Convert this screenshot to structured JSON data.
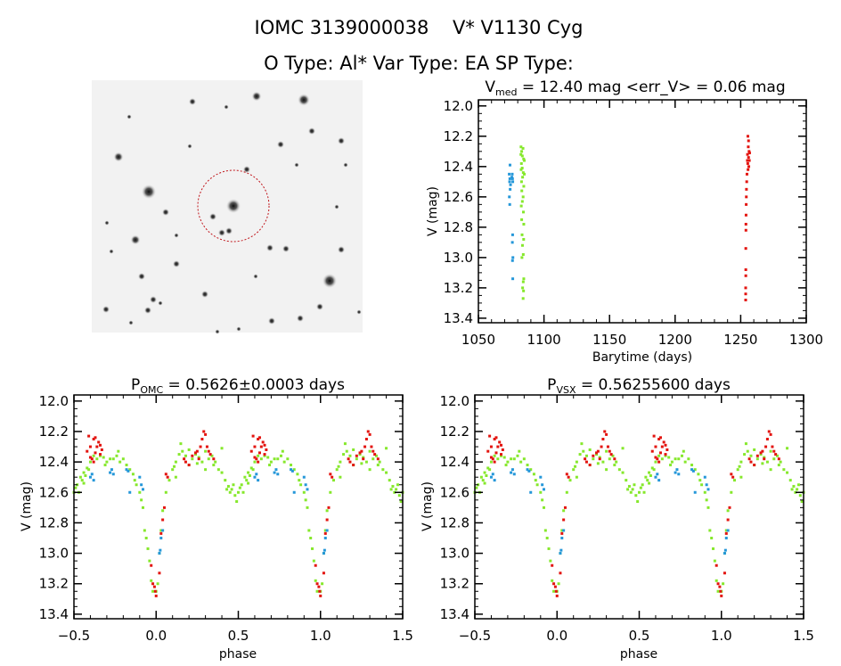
{
  "header": {
    "title": "IOMC 3139000038    V* V1130 Cyg",
    "subtitle": "O Type: Al*  Var Type: EA  SP Type:"
  },
  "colors": {
    "green": "#86e82c",
    "blue": "#2597d9",
    "red": "#e3140f",
    "axis": "#000000"
  },
  "chart_data": [
    {
      "id": "lightcurve",
      "type": "scatter",
      "title": {
        "main": "V",
        "sub": "med",
        "rest": " = 12.40 mag <err_V> = 0.06 mag"
      },
      "xlabel": "Barytime (days)",
      "ylabel": "V (mag)",
      "xlim": [
        1050,
        1300
      ],
      "ylim": [
        11.96,
        13.43
      ],
      "y_inverted": true,
      "xticks": [
        "1050",
        "1100",
        "1150",
        "1200",
        "1250",
        "1300"
      ],
      "xtick_values": [
        1050,
        1100,
        1150,
        1200,
        1250,
        1300
      ],
      "yticks": [
        "12.0",
        "12.2",
        "12.4",
        "12.6",
        "12.8",
        "13.0",
        "13.2",
        "13.4"
      ],
      "ytick_values": [
        12.0,
        12.2,
        12.4,
        12.6,
        12.8,
        13.0,
        13.2,
        13.4
      ],
      "series": [
        {
          "name": "blue",
          "color": "#2597d9",
          "points": [
            [
              1073.5,
              12.45
            ],
            [
              1073.8,
              12.5
            ],
            [
              1074,
              12.48
            ],
            [
              1074.2,
              12.55
            ],
            [
              1073.6,
              12.6
            ],
            [
              1073.9,
              12.65
            ],
            [
              1074.1,
              12.39
            ],
            [
              1075.8,
              12.45
            ],
            [
              1076,
              12.48
            ],
            [
              1076.2,
              12.5
            ],
            [
              1076.1,
              12.85
            ],
            [
              1075.9,
              12.9
            ],
            [
              1076.3,
              13.0
            ],
            [
              1076,
              13.02
            ],
            [
              1076.2,
              13.14
            ],
            [
              1074.5,
              12.52
            ],
            [
              1075.5,
              12.47
            ]
          ]
        },
        {
          "name": "green",
          "color": "#86e82c",
          "points": [
            [
              1082.5,
              12.27
            ],
            [
              1083,
              12.3
            ],
            [
              1083.5,
              12.33
            ],
            [
              1084,
              12.28
            ],
            [
              1084.5,
              12.35
            ],
            [
              1082.8,
              12.38
            ],
            [
              1083.4,
              12.41
            ],
            [
              1084.2,
              12.44
            ],
            [
              1083.7,
              12.47
            ],
            [
              1082.9,
              12.5
            ],
            [
              1084.6,
              12.53
            ],
            [
              1083.1,
              12.56
            ],
            [
              1084.1,
              12.6
            ],
            [
              1083.5,
              12.63
            ],
            [
              1082.7,
              12.66
            ],
            [
              1084.3,
              12.7
            ],
            [
              1083,
              12.75
            ],
            [
              1084.6,
              12.78
            ],
            [
              1083.3,
              12.85
            ],
            [
              1084.5,
              12.88
            ],
            [
              1083.6,
              12.92
            ],
            [
              1084.2,
              12.98
            ],
            [
              1083.2,
              13.0
            ],
            [
              1084.6,
              13.14
            ],
            [
              1084.2,
              13.16
            ],
            [
              1083.7,
              13.2
            ],
            [
              1084.4,
              13.22
            ],
            [
              1084.1,
              13.27
            ],
            [
              1082.6,
              12.42
            ],
            [
              1085,
              12.36
            ],
            [
              1085,
              12.45
            ],
            [
              1082.4,
              12.32
            ]
          ]
        },
        {
          "name": "red",
          "color": "#e3140f",
          "points": [
            [
              1255.5,
              12.2
            ],
            [
              1256,
              12.23
            ],
            [
              1255.8,
              12.27
            ],
            [
              1256.4,
              12.3
            ],
            [
              1255.2,
              12.32
            ],
            [
              1256,
              12.34
            ],
            [
              1256.6,
              12.36
            ],
            [
              1255.4,
              12.38
            ],
            [
              1256.2,
              12.4
            ],
            [
              1255.6,
              12.42
            ],
            [
              1254.8,
              12.45
            ],
            [
              1254.6,
              12.5
            ],
            [
              1254.4,
              12.55
            ],
            [
              1254.3,
              12.6
            ],
            [
              1254.2,
              12.65
            ],
            [
              1254.1,
              12.72
            ],
            [
              1254,
              12.78
            ],
            [
              1254,
              12.82
            ],
            [
              1253.9,
              12.94
            ],
            [
              1253.9,
              13.08
            ],
            [
              1253.9,
              13.12
            ],
            [
              1253.8,
              13.2
            ],
            [
              1253.8,
              13.24
            ],
            [
              1253.8,
              13.28
            ],
            [
              1256.8,
              12.31
            ],
            [
              1255.1,
              12.36
            ]
          ]
        }
      ]
    },
    {
      "id": "phase-omc",
      "type": "scatter",
      "title": {
        "main": "P",
        "sub": "OMC",
        "rest": " = 0.5626±0.0003 days"
      },
      "xlabel": "phase",
      "ylabel": "V (mag)",
      "xlim": [
        -0.5,
        1.5
      ],
      "ylim": [
        11.96,
        13.43
      ],
      "y_inverted": true,
      "period_days": 0.5626,
      "xticks": [
        "-0.5",
        "0.0",
        "0.5",
        "1.0",
        "1.5"
      ],
      "xtick_values": [
        -0.5,
        0.0,
        0.5,
        1.0,
        1.5
      ],
      "yticks": [
        "12.0",
        "12.2",
        "12.4",
        "12.6",
        "12.8",
        "13.0",
        "13.2",
        "13.4"
      ],
      "ytick_values": [
        12.0,
        12.2,
        12.4,
        12.6,
        12.8,
        13.0,
        13.2,
        13.4
      ],
      "phase_repeat": true
    },
    {
      "id": "phase-vsx",
      "type": "scatter",
      "title": {
        "main": "P",
        "sub": "VSX",
        "rest": " = 0.56255600 days"
      },
      "xlabel": "phase",
      "ylabel": "V (mag)",
      "xlim": [
        -0.5,
        1.5
      ],
      "ylim": [
        11.96,
        13.43
      ],
      "y_inverted": true,
      "period_days": 0.562556,
      "xticks": [
        "-0.5",
        "0.0",
        "0.5",
        "1.0",
        "1.5"
      ],
      "xtick_values": [
        -0.5,
        0.0,
        0.5,
        1.0,
        1.5
      ],
      "yticks": [
        "12.0",
        "12.2",
        "12.4",
        "12.6",
        "12.8",
        "13.0",
        "13.2",
        "13.4"
      ],
      "ytick_values": [
        12.0,
        12.2,
        12.4,
        12.6,
        12.8,
        13.0,
        13.2,
        13.4
      ],
      "phase_repeat": true
    }
  ],
  "phase_series": [
    {
      "name": "green",
      "color": "#86e82c",
      "points": [
        [
          0.0,
          13.25
        ],
        [
          0.01,
          13.2
        ],
        [
          0.02,
          13.0
        ],
        [
          0.03,
          12.85
        ],
        [
          0.04,
          12.72
        ],
        [
          0.06,
          12.6
        ],
        [
          0.08,
          12.52
        ],
        [
          0.1,
          12.45
        ],
        [
          0.12,
          12.4
        ],
        [
          0.14,
          12.35
        ],
        [
          0.16,
          12.33
        ],
        [
          0.18,
          12.36
        ],
        [
          0.2,
          12.32
        ],
        [
          0.22,
          12.38
        ],
        [
          0.24,
          12.35
        ],
        [
          0.26,
          12.37
        ],
        [
          0.28,
          12.4
        ],
        [
          0.3,
          12.33
        ],
        [
          0.32,
          12.38
        ],
        [
          0.34,
          12.36
        ],
        [
          0.36,
          12.4
        ],
        [
          0.38,
          12.45
        ],
        [
          0.4,
          12.47
        ],
        [
          0.42,
          12.52
        ],
        [
          0.44,
          12.56
        ],
        [
          0.46,
          12.58
        ],
        [
          0.48,
          12.62
        ],
        [
          0.5,
          12.6
        ],
        [
          0.52,
          12.55
        ],
        [
          0.54,
          12.5
        ],
        [
          0.56,
          12.47
        ],
        [
          0.58,
          12.44
        ],
        [
          0.6,
          12.4
        ],
        [
          0.62,
          12.36
        ],
        [
          0.64,
          12.38
        ],
        [
          0.66,
          12.36
        ],
        [
          0.68,
          12.37
        ],
        [
          0.7,
          12.4
        ],
        [
          0.72,
          12.38
        ],
        [
          0.74,
          12.38
        ],
        [
          0.76,
          12.36
        ],
        [
          0.78,
          12.4
        ],
        [
          0.8,
          12.38
        ],
        [
          0.82,
          12.42
        ],
        [
          0.84,
          12.45
        ],
        [
          0.86,
          12.48
        ],
        [
          0.88,
          12.55
        ],
        [
          0.9,
          12.6
        ],
        [
          0.92,
          12.7
        ],
        [
          0.93,
          12.85
        ],
        [
          0.94,
          12.9
        ],
        [
          0.95,
          12.97
        ],
        [
          0.96,
          13.05
        ],
        [
          0.97,
          13.18
        ],
        [
          0.98,
          13.25
        ],
        [
          0.12,
          12.5
        ],
        [
          0.2,
          12.42
        ],
        [
          0.3,
          12.45
        ],
        [
          0.15,
          12.28
        ],
        [
          0.4,
          12.31
        ],
        [
          0.56,
          12.54
        ],
        [
          0.49,
          12.66
        ],
        [
          0.47,
          12.55
        ],
        [
          0.53,
          12.6
        ],
        [
          0.69,
          12.42
        ],
        [
          0.77,
          12.33
        ],
        [
          0.87,
          12.52
        ],
        [
          0.91,
          12.65
        ],
        [
          0.25,
          12.41
        ],
        [
          0.35,
          12.42
        ],
        [
          0.11,
          12.43
        ],
        [
          0.43,
          12.58
        ],
        [
          0.45,
          12.6
        ],
        [
          0.51,
          12.57
        ],
        [
          0.55,
          12.52
        ],
        [
          0.57,
          12.49
        ],
        [
          0.59,
          12.45
        ]
      ]
    },
    {
      "name": "red",
      "color": "#e3140f",
      "points": [
        [
          0.58,
          12.33
        ],
        [
          0.59,
          12.23
        ],
        [
          0.6,
          12.3
        ],
        [
          0.61,
          12.38
        ],
        [
          0.62,
          12.25
        ],
        [
          0.63,
          12.34
        ],
        [
          0.64,
          12.3
        ],
        [
          0.65,
          12.27
        ],
        [
          0.66,
          12.35
        ],
        [
          0.67,
          12.32
        ],
        [
          0.6,
          12.37
        ],
        [
          0.62,
          12.4
        ],
        [
          0.17,
          12.38
        ],
        [
          0.18,
          12.4
        ],
        [
          0.2,
          12.42
        ],
        [
          0.22,
          12.36
        ],
        [
          0.25,
          12.33
        ],
        [
          0.27,
          12.3
        ],
        [
          0.28,
          12.25
        ],
        [
          0.29,
          12.2
        ],
        [
          0.3,
          12.22
        ],
        [
          0.31,
          12.3
        ],
        [
          0.33,
          12.35
        ],
        [
          0.35,
          12.38
        ],
        [
          0.26,
          12.38
        ],
        [
          0.06,
          12.48
        ],
        [
          0.07,
          12.5
        ],
        [
          0.05,
          12.7
        ],
        [
          0.04,
          12.78
        ],
        [
          0.03,
          12.87
        ],
        [
          0.02,
          13.13
        ],
        [
          0.0,
          13.28
        ],
        [
          0.99,
          13.22
        ],
        [
          0.98,
          13.2
        ],
        [
          0.97,
          13.08
        ],
        [
          0.995,
          13.25
        ],
        [
          0.63,
          12.24
        ],
        [
          0.66,
          12.29
        ],
        [
          0.24,
          12.34
        ],
        [
          0.32,
          12.33
        ]
      ]
    },
    {
      "name": "blue",
      "color": "#2597d9",
      "points": [
        [
          0.6,
          12.5
        ],
        [
          0.61,
          12.48
        ],
        [
          0.62,
          12.52
        ],
        [
          0.73,
          12.45
        ],
        [
          0.74,
          12.48
        ],
        [
          0.83,
          12.46
        ],
        [
          0.84,
          12.6
        ],
        [
          0.9,
          12.5
        ],
        [
          0.91,
          12.55
        ],
        [
          0.92,
          12.58
        ],
        [
          0.02,
          13.0
        ],
        [
          0.025,
          12.98
        ],
        [
          0.03,
          12.9
        ],
        [
          0.04,
          12.85
        ],
        [
          0.72,
          12.47
        ],
        [
          0.82,
          12.45
        ]
      ]
    }
  ]
}
